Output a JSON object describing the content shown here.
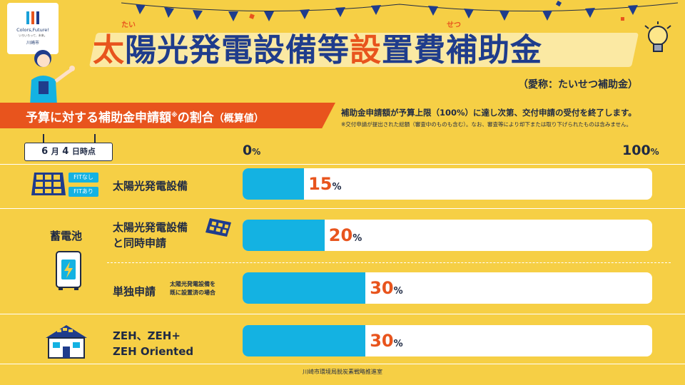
{
  "logo": {
    "main": "Colors,Future!",
    "sub": "いろいろって、未来。",
    "city": "川崎市"
  },
  "title": {
    "char1": "太",
    "part1": "陽光発電設備等",
    "char2": "設",
    "part2": "置費補助金",
    "ruby1": "たい",
    "ruby2": "せつ"
  },
  "nickname": "（愛称：たいせつ補助金）",
  "banner": {
    "main": "予算に対する補助金申請額",
    "sup": "※",
    "tail": "の割合",
    "paren": "（概算値）"
  },
  "notes": {
    "line1": "補助金申請額が予算上限（100%）に達し次第、交付申請の受付を終了します。",
    "line2": "※交付申請が提出された総額（審査中のものも含む）。なお、審査等により却下または取り下げられたものは含みません。"
  },
  "date": {
    "month": "6",
    "month_unit": "月",
    "day": "4",
    "suffix": "日時点"
  },
  "scale": {
    "min": "0",
    "max": "100",
    "unit": "%"
  },
  "fit_tags": {
    "without": "FITなし",
    "with": "FITあり"
  },
  "groups": {
    "storage": "蓄電池"
  },
  "rows": [
    {
      "label": "太陽光発電設備",
      "value": 15,
      "value_text": "15",
      "unit": "%"
    },
    {
      "label_line1": "太陽光発電設備",
      "label_line2": "と同時申請",
      "value": 20,
      "value_text": "20",
      "unit": "%"
    },
    {
      "label": "単独申請",
      "note_line1": "太陽光発電設備を",
      "note_line2": "既に設置済の場合",
      "value": 30,
      "value_text": "30",
      "unit": "%"
    },
    {
      "label_line1": "ZEH、ZEH+",
      "label_line2": "ZEH Oriented",
      "value": 30,
      "value_text": "30",
      "unit": "%"
    }
  ],
  "footer": "川崎市環境局脱炭素戦略推進室",
  "colors": {
    "background": "#f6cf45",
    "accent": "#e8541d",
    "navy": "#1f3c8c",
    "bar": "#14b2e2"
  }
}
